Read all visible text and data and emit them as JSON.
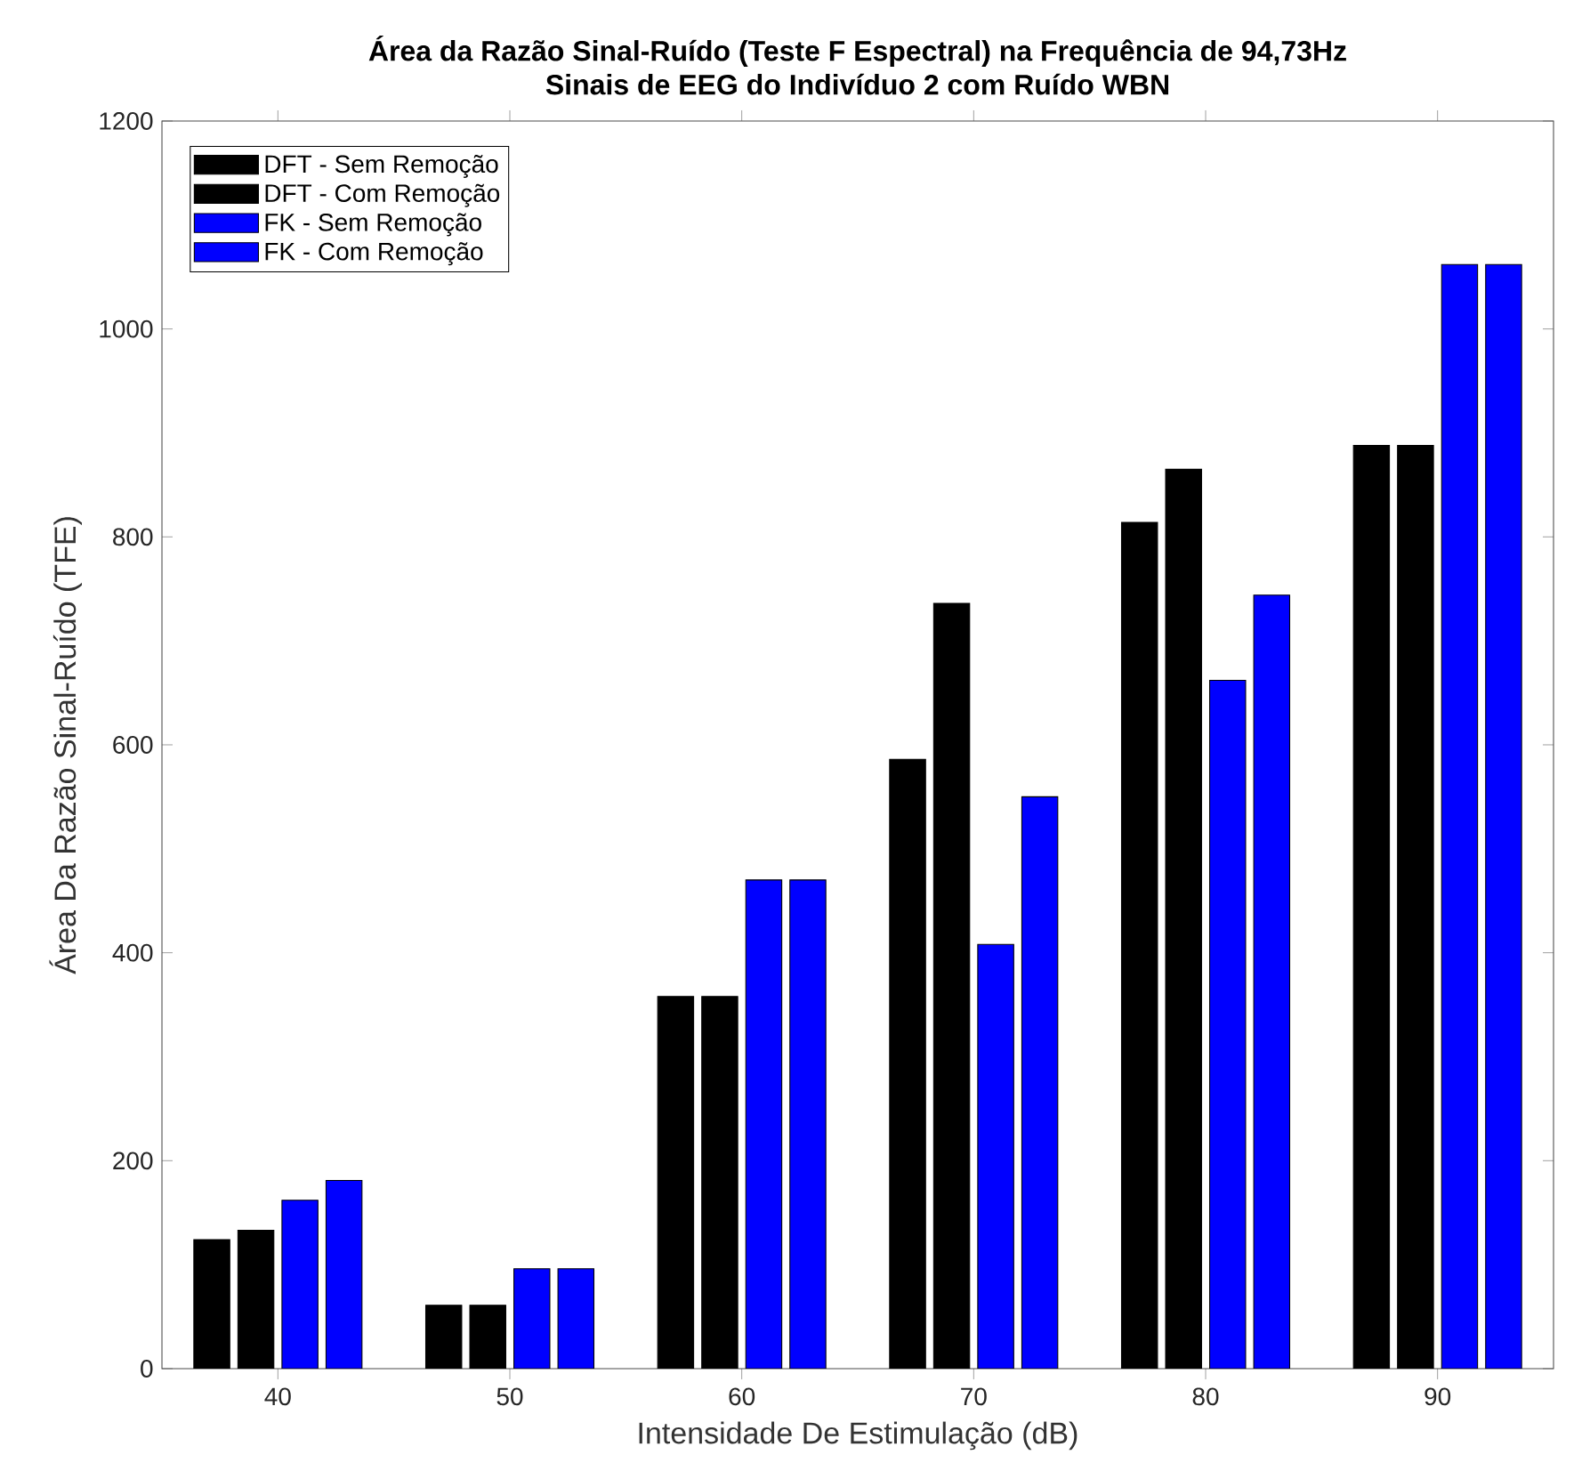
{
  "chart_data": {
    "type": "bar",
    "title": "Área da Razão Sinal-Ruído (Teste F Espectral) na Frequência de 94,73Hz",
    "subtitle": "Sinais de EEG do Indivíduo 2 com Ruído WBN",
    "xlabel": "Intensidade De Estimulação (dB)",
    "ylabel": "Área Da Razão Sinal-Ruído (TFE)",
    "categories": [
      "40",
      "50",
      "60",
      "70",
      "80",
      "90"
    ],
    "series": [
      {
        "name": "DFT - Sem Remoção",
        "color": "#000000",
        "values": [
          124,
          61,
          358,
          586,
          814,
          888
        ]
      },
      {
        "name": "DFT - Com Remoção",
        "color": "#000000",
        "values": [
          133,
          61,
          358,
          736,
          865,
          888
        ]
      },
      {
        "name": "FK - Sem Remoção",
        "color": "#0000ff",
        "values": [
          162,
          96,
          470,
          408,
          662,
          1062
        ]
      },
      {
        "name": "FK - Com Remoção",
        "color": "#0000ff",
        "values": [
          181,
          96,
          470,
          550,
          744,
          1062
        ]
      }
    ],
    "ylim": [
      0,
      1200
    ],
    "yticks": [
      0,
      200,
      400,
      600,
      800,
      1000,
      1200
    ],
    "grid": false,
    "legend": "top left"
  }
}
